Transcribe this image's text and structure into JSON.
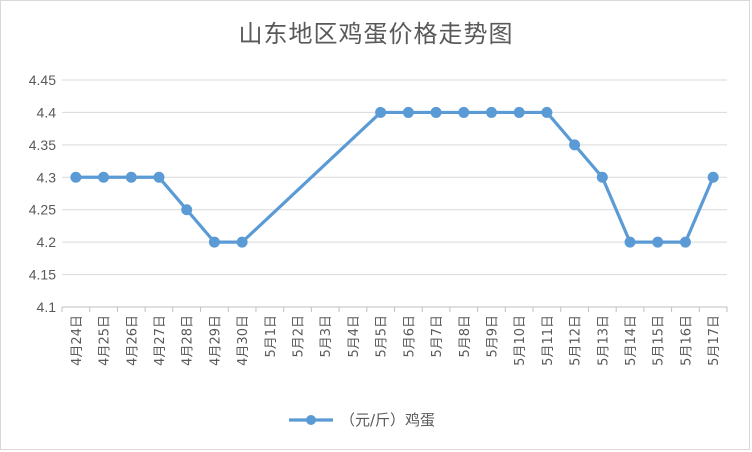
{
  "chart_data": {
    "type": "line",
    "title": "山东地区鸡蛋价格走势图",
    "categories": [
      "4月24日",
      "4月25日",
      "4月26日",
      "4月27日",
      "4月28日",
      "4月29日",
      "4月30日",
      "5月1日",
      "5月2日",
      "5月3日",
      "5月4日",
      "5月5日",
      "5月6日",
      "5月7日",
      "5月8日",
      "5月9日",
      "5月10日",
      "5月11日",
      "5月12日",
      "5月13日",
      "5月14日",
      "5月15日",
      "5月16日",
      "5月17日"
    ],
    "series": [
      {
        "name": "（元/斤）鸡蛋",
        "color": "#5b9bd5",
        "values": [
          4.3,
          4.3,
          4.3,
          4.3,
          4.25,
          4.2,
          4.2,
          null,
          null,
          null,
          null,
          4.4,
          4.4,
          4.4,
          4.4,
          4.4,
          4.4,
          4.4,
          4.35,
          4.3,
          4.2,
          4.2,
          4.2,
          4.3
        ]
      }
    ],
    "ylim": [
      4.1,
      4.45
    ],
    "yticks": [
      "4.1",
      "4.15",
      "4.2",
      "4.25",
      "4.3",
      "4.35",
      "4.4",
      "4.45"
    ],
    "grid": true,
    "legend_position": "bottom",
    "gap_handling": "connect"
  }
}
